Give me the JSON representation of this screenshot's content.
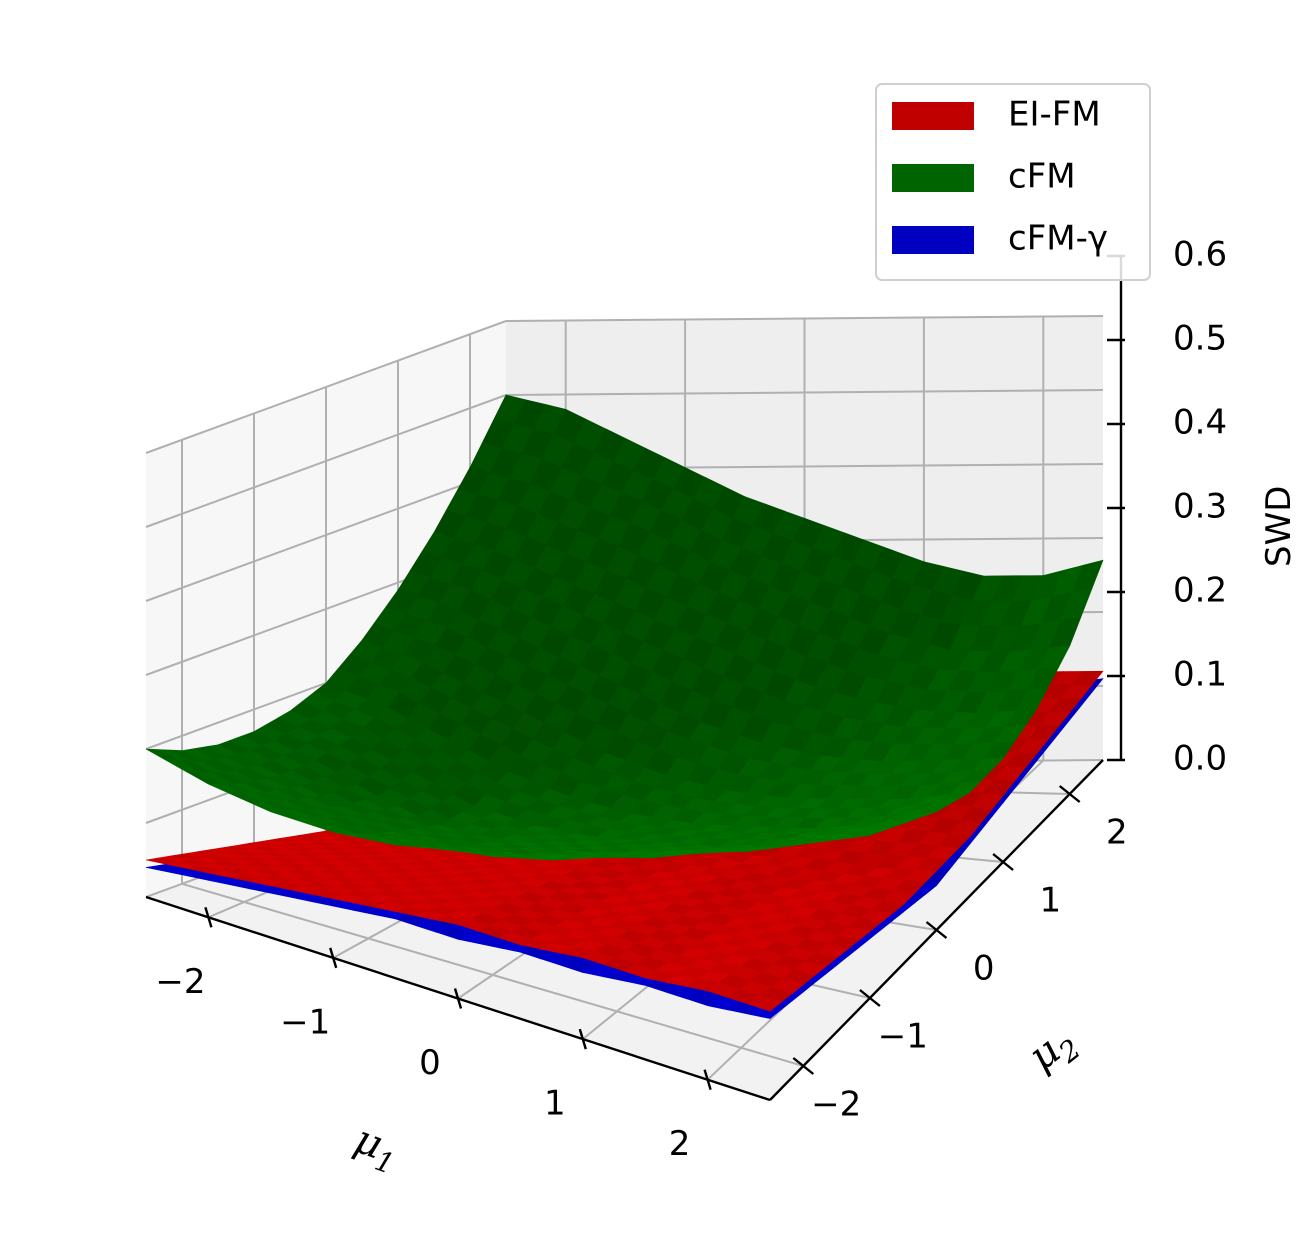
{
  "chart_data": {
    "type": "surface3d",
    "xlabel": "μ",
    "xlabel_sub": "1",
    "ylabel": "μ",
    "ylabel_sub": "2",
    "zlabel": "SWD",
    "xlim": [
      -2.5,
      2.5
    ],
    "ylim": [
      -2.5,
      2.5
    ],
    "zlim": [
      0.0,
      0.6
    ],
    "xticks": [
      -2,
      -1,
      0,
      1,
      2
    ],
    "yticks": [
      -2,
      -1,
      0,
      1,
      2
    ],
    "zticks": [
      0.0,
      0.1,
      0.2,
      0.3,
      0.4,
      0.5,
      0.6
    ],
    "xtick_labels": [
      "−2",
      "−1",
      "0",
      "1",
      "2"
    ],
    "ytick_labels": [
      "−2",
      "−1",
      "0",
      "1",
      "2"
    ],
    "ztick_labels": [
      "0.0",
      "0.1",
      "0.2",
      "0.3",
      "0.4",
      "0.5",
      "0.6"
    ],
    "grid": true,
    "legend_position": "top-right",
    "x": [
      -2.5,
      -2.0,
      -1.5,
      -1.0,
      -0.5,
      0.0,
      0.5,
      1.0,
      1.5,
      2.0,
      2.5
    ],
    "y": [
      -2.5,
      -2.0,
      -1.5,
      -1.0,
      -0.5,
      0.0,
      0.5,
      1.0,
      1.5,
      2.0,
      2.5
    ],
    "series": [
      {
        "name": "EI-FM",
        "color": "#c00000",
        "z": [
          [
            0.05,
            0.04,
            0.03,
            0.02,
            0.01,
            0.0,
            0.01,
            0.02,
            0.03,
            0.04,
            0.05
          ],
          [
            0.06,
            0.05,
            0.04,
            0.03,
            0.02,
            0.01,
            0.02,
            0.03,
            0.04,
            0.05,
            0.06
          ],
          [
            0.07,
            0.06,
            0.05,
            0.04,
            0.03,
            0.02,
            0.03,
            0.04,
            0.05,
            0.06,
            0.07
          ],
          [
            0.08,
            0.07,
            0.06,
            0.05,
            0.04,
            0.03,
            0.04,
            0.05,
            0.06,
            0.07,
            0.08
          ],
          [
            0.09,
            0.08,
            0.07,
            0.06,
            0.05,
            0.04,
            0.05,
            0.06,
            0.07,
            0.08,
            0.09
          ],
          [
            0.1,
            0.09,
            0.08,
            0.07,
            0.06,
            0.05,
            0.06,
            0.07,
            0.08,
            0.09,
            0.1
          ],
          [
            0.1,
            0.09,
            0.08,
            0.07,
            0.06,
            0.06,
            0.06,
            0.07,
            0.08,
            0.09,
            0.1
          ],
          [
            0.11,
            0.1,
            0.09,
            0.08,
            0.07,
            0.06,
            0.07,
            0.08,
            0.09,
            0.1,
            0.11
          ],
          [
            0.11,
            0.1,
            0.09,
            0.08,
            0.07,
            0.07,
            0.07,
            0.08,
            0.09,
            0.1,
            0.11
          ],
          [
            0.12,
            0.11,
            0.1,
            0.09,
            0.08,
            0.07,
            0.08,
            0.09,
            0.1,
            0.11,
            0.12
          ],
          [
            0.12,
            0.11,
            0.1,
            0.09,
            0.08,
            0.08,
            0.08,
            0.09,
            0.1,
            0.11,
            0.12
          ]
        ]
      },
      {
        "name": "cFM",
        "color": "#006400",
        "z": [
          [
            0.2,
            0.18,
            0.17,
            0.17,
            0.18,
            0.2,
            0.24,
            0.29,
            0.35,
            0.42,
            0.5
          ],
          [
            0.18,
            0.16,
            0.15,
            0.15,
            0.16,
            0.18,
            0.22,
            0.27,
            0.33,
            0.4,
            0.48
          ],
          [
            0.17,
            0.15,
            0.13,
            0.12,
            0.13,
            0.15,
            0.19,
            0.24,
            0.3,
            0.37,
            0.44
          ],
          [
            0.17,
            0.14,
            0.12,
            0.1,
            0.1,
            0.12,
            0.16,
            0.21,
            0.27,
            0.34,
            0.4
          ],
          [
            0.18,
            0.15,
            0.12,
            0.1,
            0.09,
            0.1,
            0.13,
            0.18,
            0.24,
            0.3,
            0.36
          ],
          [
            0.2,
            0.16,
            0.13,
            0.11,
            0.09,
            0.09,
            0.11,
            0.15,
            0.21,
            0.27,
            0.33
          ],
          [
            0.22,
            0.18,
            0.15,
            0.12,
            0.1,
            0.09,
            0.1,
            0.13,
            0.18,
            0.24,
            0.3
          ],
          [
            0.25,
            0.21,
            0.17,
            0.14,
            0.11,
            0.1,
            0.1,
            0.12,
            0.16,
            0.21,
            0.27
          ],
          [
            0.28,
            0.24,
            0.2,
            0.16,
            0.13,
            0.11,
            0.11,
            0.12,
            0.15,
            0.19,
            0.25
          ],
          [
            0.31,
            0.27,
            0.23,
            0.19,
            0.16,
            0.13,
            0.12,
            0.13,
            0.15,
            0.19,
            0.25
          ],
          [
            0.34,
            0.3,
            0.26,
            0.22,
            0.19,
            0.16,
            0.14,
            0.14,
            0.16,
            0.2,
            0.27
          ]
        ]
      },
      {
        "name": "cFM-γ",
        "color": "#0000c0",
        "z": [
          [
            0.04,
            0.03,
            0.02,
            0.01,
            0.0,
            0.0,
            0.0,
            0.01,
            0.02,
            0.03,
            0.04
          ],
          [
            0.05,
            0.04,
            0.03,
            0.02,
            0.01,
            0.0,
            0.01,
            0.02,
            0.03,
            0.04,
            0.05
          ],
          [
            0.06,
            0.05,
            0.04,
            0.03,
            0.02,
            0.01,
            0.02,
            0.03,
            0.04,
            0.05,
            0.06
          ],
          [
            0.07,
            0.06,
            0.05,
            0.04,
            0.03,
            0.02,
            0.03,
            0.04,
            0.05,
            0.06,
            0.07
          ],
          [
            0.08,
            0.07,
            0.06,
            0.05,
            0.04,
            0.03,
            0.04,
            0.05,
            0.06,
            0.07,
            0.08
          ],
          [
            0.08,
            0.07,
            0.06,
            0.05,
            0.04,
            0.04,
            0.04,
            0.05,
            0.06,
            0.07,
            0.08
          ],
          [
            0.09,
            0.08,
            0.07,
            0.06,
            0.05,
            0.04,
            0.05,
            0.06,
            0.07,
            0.08,
            0.09
          ],
          [
            0.09,
            0.08,
            0.07,
            0.06,
            0.05,
            0.05,
            0.05,
            0.06,
            0.07,
            0.08,
            0.09
          ],
          [
            0.1,
            0.09,
            0.08,
            0.07,
            0.06,
            0.05,
            0.06,
            0.07,
            0.08,
            0.09,
            0.1
          ],
          [
            0.1,
            0.09,
            0.08,
            0.07,
            0.06,
            0.06,
            0.06,
            0.07,
            0.08,
            0.09,
            0.1
          ],
          [
            0.11,
            0.1,
            0.09,
            0.08,
            0.07,
            0.06,
            0.07,
            0.08,
            0.09,
            0.1,
            0.11
          ]
        ]
      }
    ]
  }
}
